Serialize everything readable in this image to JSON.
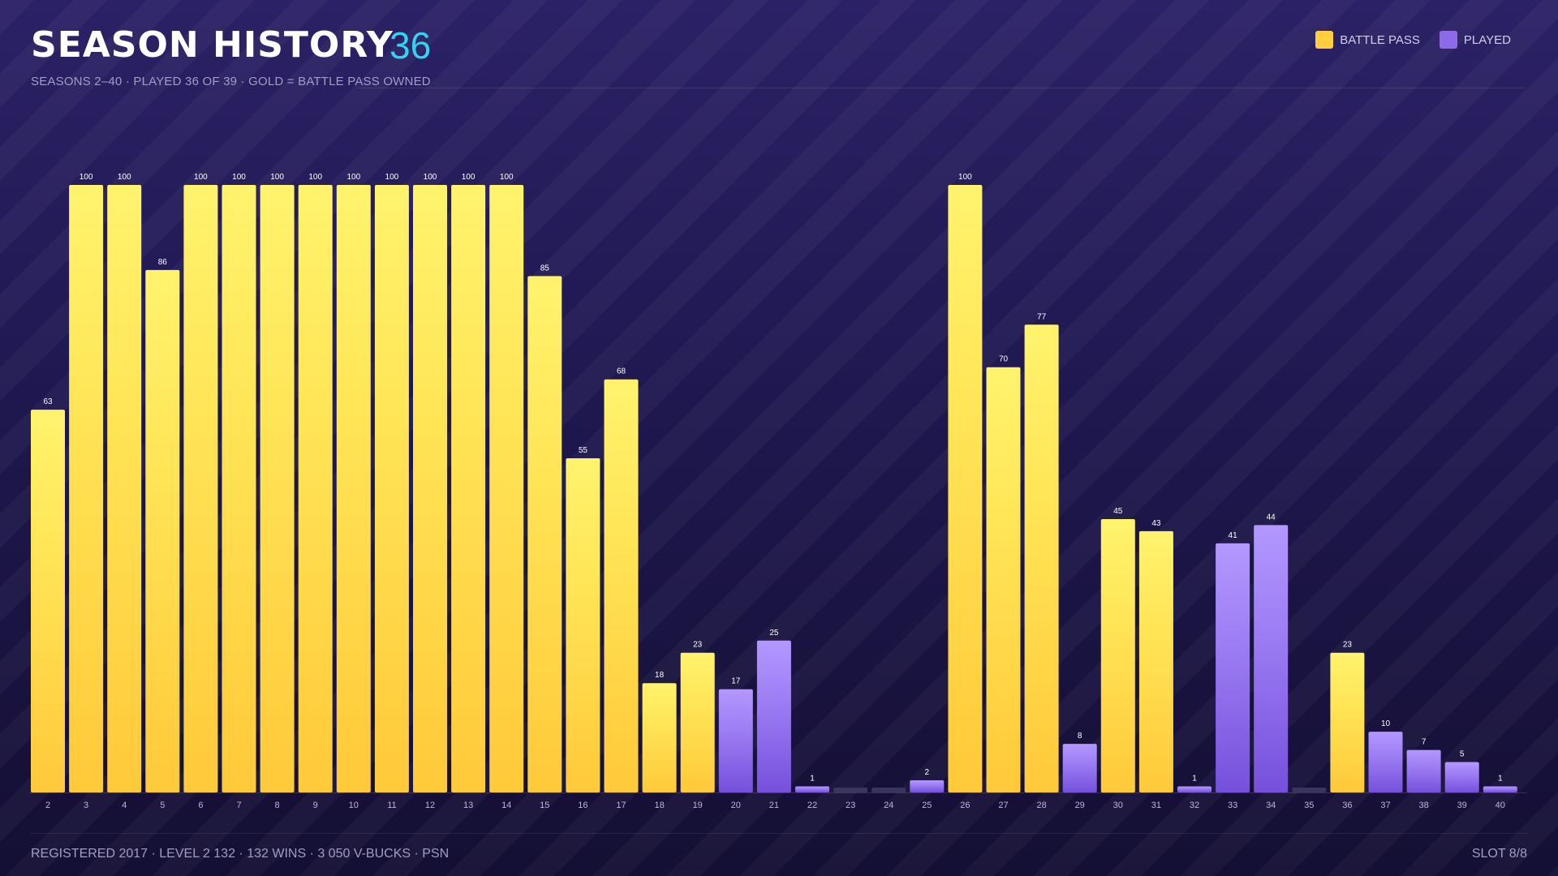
{
  "header": {
    "title": "SEASON HISTORY",
    "count": "36",
    "subtitle": "SEASONS 2–40 · PLAYED 36 OF 39 · GOLD = BATTLE PASS OWNED"
  },
  "legend": [
    {
      "label": "BATTLE PASS",
      "color": "#ffcf3f"
    },
    {
      "label": "PLAYED",
      "color": "#8d6be8"
    }
  ],
  "footer": {
    "left": "REGISTERED 2017 · LEVEL 2 132 · 132 WINS · 3 050 V-BUCKS · PSN",
    "right": "SLOT 8/8"
  },
  "colors": {
    "battle_pass": "#ffcf3f",
    "played": "#8d6be8",
    "not_played": "#3a3560",
    "accent": "#35d3f2"
  },
  "chart_data": {
    "type": "bar",
    "ylim": [
      0,
      100
    ],
    "categories": [
      "2",
      "3",
      "4",
      "5",
      "6",
      "7",
      "8",
      "9",
      "10",
      "11",
      "12",
      "13",
      "14",
      "15",
      "16",
      "17",
      "18",
      "19",
      "20",
      "21",
      "22",
      "23",
      "24",
      "25",
      "26",
      "27",
      "28",
      "29",
      "30",
      "31",
      "32",
      "33",
      "34",
      "35",
      "36",
      "37",
      "38",
      "39",
      "40"
    ],
    "values": [
      63,
      100,
      100,
      86,
      100,
      100,
      100,
      100,
      100,
      100,
      100,
      100,
      100,
      85,
      55,
      68,
      18,
      23,
      17,
      25,
      1,
      0,
      0,
      2,
      100,
      70,
      77,
      8,
      45,
      43,
      1,
      41,
      44,
      0,
      23,
      10,
      7,
      5,
      1
    ],
    "value_labels": [
      "63",
      "100",
      "100",
      "86",
      "100",
      "100",
      "100",
      "100",
      "100",
      "100",
      "100",
      "100",
      "100",
      "85",
      "55",
      "68",
      "18",
      "23",
      "17",
      "25",
      "1",
      "",
      "",
      "2",
      "100",
      "70",
      "77",
      "8",
      "45",
      "43",
      "1",
      "41",
      "44",
      "",
      "23",
      "10",
      "7",
      "5",
      "1"
    ],
    "status": [
      "bp",
      "bp",
      "bp",
      "bp",
      "bp",
      "bp",
      "bp",
      "bp",
      "bp",
      "bp",
      "bp",
      "bp",
      "bp",
      "bp",
      "bp",
      "bp",
      "bp",
      "bp",
      "played",
      "played",
      "played",
      "none",
      "none",
      "played",
      "bp",
      "bp",
      "bp",
      "played",
      "bp",
      "bp",
      "played",
      "played",
      "played",
      "none",
      "bp",
      "played",
      "played",
      "played",
      "played"
    ]
  }
}
